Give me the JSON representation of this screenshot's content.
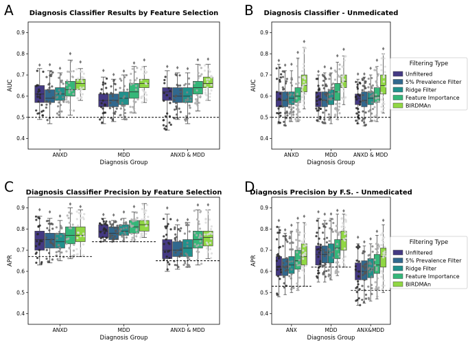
{
  "legend": {
    "title": "Filtering Type",
    "entries": [
      "Unfiltered",
      "5% Prevalence Filter",
      "Ridge Filter",
      "Feature Importance",
      "BIRDMAn"
    ],
    "colors": [
      "#443983",
      "#31688e",
      "#21918c",
      "#35b779",
      "#90d743"
    ]
  },
  "chart_data": [
    {
      "panel": "A",
      "type": "box",
      "title": "Diagnosis Classifier Results by Feature Selection",
      "xlabel": "Diagnosis Group",
      "ylabel": "AUC",
      "categories": [
        "ANXD",
        "MDD",
        "ANXD & MDD"
      ],
      "ylim": [
        0.35,
        0.95
      ],
      "yticks": [
        "0.4",
        "0.5",
        "0.6",
        "0.7",
        "0.8",
        "0.9"
      ],
      "baselines": [
        0.5
      ],
      "series": [
        {
          "name": "Unfiltered",
          "boxes": [
            {
              "q1": 0.57,
              "median": 0.61,
              "q3": 0.65,
              "lo": 0.49,
              "hi": 0.73
            },
            {
              "q1": 0.55,
              "median": 0.58,
              "q3": 0.61,
              "lo": 0.47,
              "hi": 0.69
            },
            {
              "q1": 0.58,
              "median": 0.62,
              "q3": 0.64,
              "lo": 0.44,
              "hi": 0.72
            }
          ]
        },
        {
          "name": "5% Prevalence Filter",
          "boxes": [
            {
              "q1": 0.57,
              "median": 0.59,
              "q3": 0.63,
              "lo": 0.47,
              "hi": 0.72
            },
            {
              "q1": 0.55,
              "median": 0.58,
              "q3": 0.61,
              "lo": 0.48,
              "hi": 0.68
            },
            {
              "q1": 0.57,
              "median": 0.6,
              "q3": 0.64,
              "lo": 0.49,
              "hi": 0.71
            }
          ]
        },
        {
          "name": "Ridge Filter",
          "boxes": [
            {
              "q1": 0.58,
              "median": 0.61,
              "q3": 0.64,
              "lo": 0.5,
              "hi": 0.71
            },
            {
              "q1": 0.56,
              "median": 0.59,
              "q3": 0.62,
              "lo": 0.49,
              "hi": 0.7
            },
            {
              "q1": 0.57,
              "median": 0.6,
              "q3": 0.64,
              "lo": 0.47,
              "hi": 0.71
            }
          ]
        },
        {
          "name": "Feature Importance",
          "boxes": [
            {
              "q1": 0.6,
              "median": 0.63,
              "q3": 0.67,
              "lo": 0.51,
              "hi": 0.77
            },
            {
              "q1": 0.59,
              "median": 0.62,
              "q3": 0.66,
              "lo": 0.52,
              "hi": 0.74
            },
            {
              "q1": 0.61,
              "median": 0.64,
              "q3": 0.67,
              "lo": 0.53,
              "hi": 0.75
            }
          ]
        },
        {
          "name": "BIRDMAn",
          "boxes": [
            {
              "q1": 0.63,
              "median": 0.66,
              "q3": 0.68,
              "lo": 0.58,
              "hi": 0.73
            },
            {
              "q1": 0.64,
              "median": 0.66,
              "q3": 0.68,
              "lo": 0.57,
              "hi": 0.74
            },
            {
              "q1": 0.64,
              "median": 0.66,
              "q3": 0.69,
              "lo": 0.58,
              "hi": 0.75
            }
          ]
        }
      ]
    },
    {
      "panel": "B",
      "type": "box",
      "title": "Diagnosis Classifier - Unmedicated",
      "xlabel": "Diagnosis Group",
      "ylabel": "AUC",
      "categories": [
        "ANXD",
        "MDD",
        "ANXD & MDD"
      ],
      "ylim": [
        0.35,
        0.95
      ],
      "yticks": [
        "0.4",
        "0.5",
        "0.6",
        "0.7",
        "0.8",
        "0.9"
      ],
      "baselines": [
        0.5
      ],
      "series": [
        {
          "name": "Unfiltered",
          "boxes": [
            {
              "q1": 0.55,
              "median": 0.58,
              "q3": 0.62,
              "lo": 0.47,
              "hi": 0.75
            },
            {
              "q1": 0.55,
              "median": 0.58,
              "q3": 0.62,
              "lo": 0.48,
              "hi": 0.7
            },
            {
              "q1": 0.56,
              "median": 0.59,
              "q3": 0.61,
              "lo": 0.47,
              "hi": 0.68
            }
          ]
        },
        {
          "name": "5% Prevalence Filter",
          "boxes": [
            {
              "q1": 0.55,
              "median": 0.58,
              "q3": 0.62,
              "lo": 0.46,
              "hi": 0.72
            },
            {
              "q1": 0.55,
              "median": 0.58,
              "q3": 0.62,
              "lo": 0.47,
              "hi": 0.71
            },
            {
              "q1": 0.55,
              "median": 0.58,
              "q3": 0.62,
              "lo": 0.46,
              "hi": 0.69
            }
          ]
        },
        {
          "name": "Ridge Filter",
          "boxes": [
            {
              "q1": 0.56,
              "median": 0.59,
              "q3": 0.62,
              "lo": 0.48,
              "hi": 0.72
            },
            {
              "q1": 0.56,
              "median": 0.59,
              "q3": 0.63,
              "lo": 0.47,
              "hi": 0.71
            },
            {
              "q1": 0.56,
              "median": 0.59,
              "q3": 0.62,
              "lo": 0.48,
              "hi": 0.7
            }
          ]
        },
        {
          "name": "Feature Importance",
          "boxes": [
            {
              "q1": 0.57,
              "median": 0.6,
              "q3": 0.64,
              "lo": 0.48,
              "hi": 0.78
            },
            {
              "q1": 0.58,
              "median": 0.62,
              "q3": 0.66,
              "lo": 0.49,
              "hi": 0.76
            },
            {
              "q1": 0.57,
              "median": 0.6,
              "q3": 0.64,
              "lo": 0.48,
              "hi": 0.74
            }
          ]
        },
        {
          "name": "BIRDMAn",
          "boxes": [
            {
              "q1": 0.62,
              "median": 0.65,
              "q3": 0.7,
              "lo": 0.54,
              "hi": 0.83
            },
            {
              "q1": 0.64,
              "median": 0.67,
              "q3": 0.7,
              "lo": 0.56,
              "hi": 0.79
            },
            {
              "q1": 0.61,
              "median": 0.65,
              "q3": 0.7,
              "lo": 0.52,
              "hi": 0.8
            }
          ]
        }
      ]
    },
    {
      "panel": "C",
      "type": "box",
      "title": "Diagnosis Classifier Precision by Feature Selection",
      "xlabel": "Diagnosis Group",
      "ylabel": "APR",
      "categories": [
        "ANXD",
        "MDD",
        "ANXD & MDD"
      ],
      "ylim": [
        0.35,
        0.95
      ],
      "yticks": [
        "0.4",
        "0.5",
        "0.6",
        "0.7",
        "0.8",
        "0.9"
      ],
      "baselines": [
        0.67,
        0.74,
        0.65
      ],
      "series": [
        {
          "name": "Unfiltered",
          "boxes": [
            {
              "q1": 0.7,
              "median": 0.75,
              "q3": 0.79,
              "lo": 0.63,
              "hi": 0.86
            },
            {
              "q1": 0.76,
              "median": 0.79,
              "q3": 0.82,
              "lo": 0.74,
              "hi": 0.85
            },
            {
              "q1": 0.66,
              "median": 0.7,
              "q3": 0.75,
              "lo": 0.6,
              "hi": 0.87
            }
          ]
        },
        {
          "name": "5% Prevalence Filter",
          "boxes": [
            {
              "q1": 0.71,
              "median": 0.75,
              "q3": 0.78,
              "lo": 0.64,
              "hi": 0.85
            },
            {
              "q1": 0.75,
              "median": 0.78,
              "q3": 0.81,
              "lo": 0.74,
              "hi": 0.84
            },
            {
              "q1": 0.67,
              "median": 0.7,
              "q3": 0.74,
              "lo": 0.61,
              "hi": 0.82
            }
          ]
        },
        {
          "name": "Ridge Filter",
          "boxes": [
            {
              "q1": 0.71,
              "median": 0.74,
              "q3": 0.78,
              "lo": 0.65,
              "hi": 0.84
            },
            {
              "q1": 0.77,
              "median": 0.79,
              "q3": 0.82,
              "lo": 0.74,
              "hi": 0.85
            },
            {
              "q1": 0.67,
              "median": 0.71,
              "q3": 0.75,
              "lo": 0.62,
              "hi": 0.83
            }
          ]
        },
        {
          "name": "Feature Importance",
          "boxes": [
            {
              "q1": 0.73,
              "median": 0.77,
              "q3": 0.81,
              "lo": 0.66,
              "hi": 0.9
            },
            {
              "q1": 0.78,
              "median": 0.81,
              "q3": 0.84,
              "lo": 0.74,
              "hi": 0.88
            },
            {
              "q1": 0.71,
              "median": 0.75,
              "q3": 0.79,
              "lo": 0.63,
              "hi": 0.89
            }
          ]
        },
        {
          "name": "BIRDMAn",
          "boxes": [
            {
              "q1": 0.74,
              "median": 0.77,
              "q3": 0.81,
              "lo": 0.67,
              "hi": 0.89
            },
            {
              "q1": 0.79,
              "median": 0.82,
              "q3": 0.84,
              "lo": 0.76,
              "hi": 0.92
            },
            {
              "q1": 0.72,
              "median": 0.76,
              "q3": 0.79,
              "lo": 0.66,
              "hi": 0.89
            }
          ]
        }
      ]
    },
    {
      "panel": "D",
      "type": "box",
      "title": "Diagnosis Precision by F.S. - Unmedicated",
      "xlabel": "Diagnosis Group",
      "ylabel": "APR",
      "categories": [
        "ANX",
        "MDD",
        "ANX&MDD"
      ],
      "ylim": [
        0.35,
        0.95
      ],
      "yticks": [
        "0.4",
        "0.5",
        "0.6",
        "0.7",
        "0.8",
        "0.9"
      ],
      "baselines": [
        0.53,
        0.62,
        0.51
      ],
      "series": [
        {
          "name": "Unfiltered",
          "boxes": [
            {
              "q1": 0.58,
              "median": 0.62,
              "q3": 0.67,
              "lo": 0.48,
              "hi": 0.81
            },
            {
              "q1": 0.63,
              "median": 0.68,
              "q3": 0.72,
              "lo": 0.55,
              "hi": 0.85
            },
            {
              "q1": 0.56,
              "median": 0.6,
              "q3": 0.64,
              "lo": 0.44,
              "hi": 0.73
            }
          ]
        },
        {
          "name": "5% Prevalence Filter",
          "boxes": [
            {
              "q1": 0.58,
              "median": 0.62,
              "q3": 0.66,
              "lo": 0.49,
              "hi": 0.78
            },
            {
              "q1": 0.64,
              "median": 0.68,
              "q3": 0.72,
              "lo": 0.55,
              "hi": 0.84
            },
            {
              "q1": 0.56,
              "median": 0.6,
              "q3": 0.65,
              "lo": 0.45,
              "hi": 0.72
            }
          ]
        },
        {
          "name": "Ridge Filter",
          "boxes": [
            {
              "q1": 0.59,
              "median": 0.63,
              "q3": 0.67,
              "lo": 0.5,
              "hi": 0.79
            },
            {
              "q1": 0.64,
              "median": 0.69,
              "q3": 0.73,
              "lo": 0.56,
              "hi": 0.85
            },
            {
              "q1": 0.57,
              "median": 0.61,
              "q3": 0.66,
              "lo": 0.46,
              "hi": 0.73
            }
          ]
        },
        {
          "name": "Feature Importance",
          "boxes": [
            {
              "q1": 0.61,
              "median": 0.65,
              "q3": 0.7,
              "lo": 0.51,
              "hi": 0.83
            },
            {
              "q1": 0.66,
              "median": 0.71,
              "q3": 0.75,
              "lo": 0.58,
              "hi": 0.87
            },
            {
              "q1": 0.59,
              "median": 0.63,
              "q3": 0.68,
              "lo": 0.47,
              "hi": 0.77
            }
          ]
        },
        {
          "name": "BIRDMAn",
          "boxes": [
            {
              "q1": 0.63,
              "median": 0.67,
              "q3": 0.73,
              "lo": 0.53,
              "hi": 0.83
            },
            {
              "q1": 0.7,
              "median": 0.75,
              "q3": 0.79,
              "lo": 0.62,
              "hi": 0.87
            },
            {
              "q1": 0.62,
              "median": 0.67,
              "q3": 0.71,
              "lo": 0.5,
              "hi": 0.82
            }
          ]
        }
      ]
    }
  ]
}
